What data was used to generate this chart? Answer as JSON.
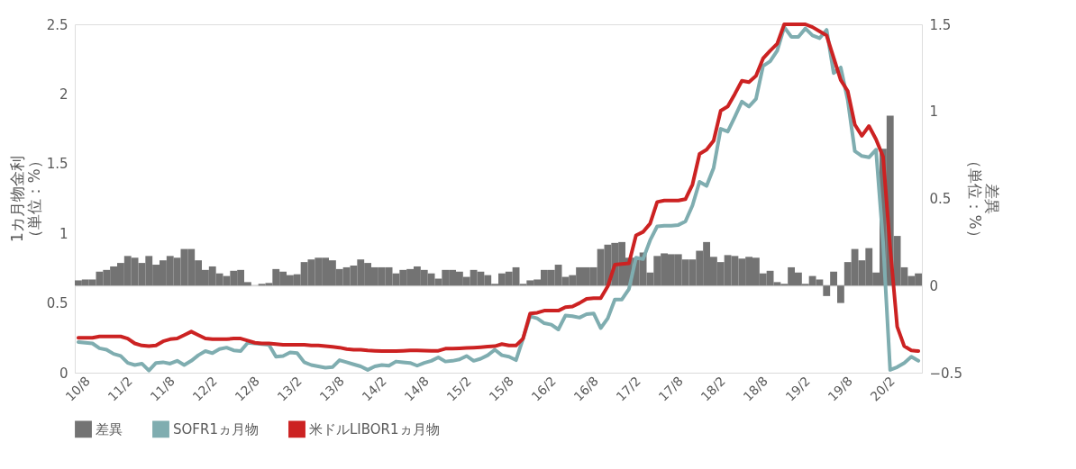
{
  "chart_data": {
    "type": "bar",
    "categories": [
      "10/8",
      null,
      null,
      null,
      null,
      null,
      "11/2",
      null,
      null,
      null,
      null,
      null,
      "11/8",
      null,
      null,
      null,
      null,
      null,
      "12/2",
      null,
      null,
      null,
      null,
      null,
      "12/8",
      null,
      null,
      null,
      null,
      null,
      "13/2",
      null,
      null,
      null,
      null,
      null,
      "13/8",
      null,
      null,
      null,
      null,
      null,
      "14/2",
      null,
      null,
      null,
      null,
      null,
      "14/8",
      null,
      null,
      null,
      null,
      null,
      "15/2",
      null,
      null,
      null,
      null,
      null,
      "15/8",
      null,
      null,
      null,
      null,
      null,
      "16/2",
      null,
      null,
      null,
      null,
      null,
      "16/8",
      null,
      null,
      null,
      null,
      null,
      "17/2",
      null,
      null,
      null,
      null,
      null,
      "17/8",
      null,
      null,
      null,
      null,
      null,
      "18/2",
      null,
      null,
      null,
      null,
      null,
      "18/8",
      null,
      null,
      null,
      null,
      null,
      "19/2",
      null,
      null,
      null,
      null,
      null,
      "19/8",
      null,
      null,
      null,
      null,
      null,
      "20/2",
      null,
      null,
      null,
      null,
      null
    ],
    "series": [
      {
        "name": "差異",
        "axis": "y2",
        "color": "#737373",
        "values": [
          0.03,
          0.035,
          0.035,
          0.08,
          0.09,
          0.11,
          0.13,
          0.17,
          0.16,
          0.13,
          0.17,
          0.12,
          0.145,
          0.17,
          0.16,
          0.21,
          0.21,
          0.145,
          0.09,
          0.11,
          0.07,
          0.055,
          0.085,
          0.09,
          0.02,
          0,
          0.01,
          0.015,
          0.095,
          0.08,
          0.06,
          0.065,
          0.135,
          0.15,
          0.16,
          0.16,
          0.145,
          0.095,
          0.105,
          0.115,
          0.15,
          0.13,
          0.105,
          0.105,
          0.105,
          0.07,
          0.09,
          0.095,
          0.11,
          0.09,
          0.07,
          0.04,
          0.09,
          0.09,
          0.08,
          0.05,
          0.09,
          0.08,
          0.06,
          0.01,
          0.07,
          0.08,
          0.105,
          0.01,
          0.03,
          0.035,
          0.09,
          0.09,
          0.12,
          0.05,
          0.06,
          0.105,
          0.105,
          0.105,
          0.21,
          0.235,
          0.245,
          0.25,
          0.16,
          0.16,
          0.19,
          0.075,
          0.17,
          0.185,
          0.18,
          0.18,
          0.15,
          0.15,
          0.2,
          0.25,
          0.165,
          0.135,
          0.175,
          0.17,
          0.155,
          0.165,
          0.16,
          0.07,
          0.085,
          0.02,
          0.01,
          0.105,
          0.075,
          0.01,
          0.055,
          0.035,
          -0.06,
          0.08,
          -0.1,
          0.135,
          0.21,
          0.145,
          0.215,
          0.075,
          0.785,
          0.975,
          0.285,
          0.105,
          0.055,
          0.07
        ]
      },
      {
        "name": "SOFR1ヵ月物",
        "type": "line",
        "axis": "y",
        "color": "#7fadb0",
        "values": [
          0.22,
          0.215,
          0.21,
          0.175,
          0.165,
          0.135,
          0.12,
          0.07,
          0.055,
          0.065,
          0.015,
          0.07,
          0.075,
          0.065,
          0.085,
          0.055,
          0.085,
          0.125,
          0.155,
          0.14,
          0.17,
          0.18,
          0.16,
          0.155,
          0.215,
          0.21,
          0.205,
          0.2,
          0.115,
          0.12,
          0.145,
          0.14,
          0.075,
          0.055,
          0.045,
          0.035,
          0.04,
          0.09,
          0.075,
          0.06,
          0.045,
          0.02,
          0.045,
          0.055,
          0.05,
          0.08,
          0.075,
          0.07,
          0.05,
          0.07,
          0.085,
          0.11,
          0.08,
          0.085,
          0.095,
          0.12,
          0.085,
          0.1,
          0.125,
          0.165,
          0.125,
          0.115,
          0.09,
          0.245,
          0.405,
          0.39,
          0.355,
          0.345,
          0.31,
          0.41,
          0.405,
          0.395,
          0.42,
          0.425,
          0.32,
          0.39,
          0.525,
          0.525,
          0.6,
          0.825,
          0.815,
          0.95,
          1.05,
          1.055,
          1.055,
          1.06,
          1.085,
          1.2,
          1.37,
          1.34,
          1.47,
          1.75,
          1.73,
          1.835,
          1.945,
          1.91,
          1.965,
          2.2,
          2.235,
          2.31,
          2.48,
          2.41,
          2.41,
          2.47,
          2.42,
          2.4,
          2.46,
          2.15,
          2.19,
          1.955,
          1.59,
          1.555,
          1.545,
          1.6,
          0.94,
          0.02,
          0.04,
          0.07,
          0.115,
          0.085
        ]
      },
      {
        "name": "米ドルLIBOR1ヵ月物",
        "type": "line",
        "axis": "y",
        "color": "#cc2222",
        "values": [
          0.25,
          0.25,
          0.25,
          0.26,
          0.26,
          0.26,
          0.26,
          0.245,
          0.21,
          0.195,
          0.19,
          0.195,
          0.225,
          0.24,
          0.245,
          0.27,
          0.295,
          0.27,
          0.245,
          0.24,
          0.24,
          0.24,
          0.245,
          0.245,
          0.23,
          0.215,
          0.21,
          0.21,
          0.205,
          0.2,
          0.2,
          0.2,
          0.2,
          0.195,
          0.195,
          0.19,
          0.185,
          0.18,
          0.17,
          0.165,
          0.165,
          0.16,
          0.157,
          0.155,
          0.155,
          0.155,
          0.157,
          0.16,
          0.16,
          0.158,
          0.157,
          0.157,
          0.172,
          0.173,
          0.175,
          0.178,
          0.18,
          0.183,
          0.187,
          0.19,
          0.205,
          0.195,
          0.195,
          0.245,
          0.425,
          0.43,
          0.445,
          0.445,
          0.445,
          0.47,
          0.475,
          0.5,
          0.53,
          0.535,
          0.535,
          0.62,
          0.775,
          0.78,
          0.785,
          0.985,
          1.01,
          1.07,
          1.225,
          1.235,
          1.235,
          1.235,
          1.245,
          1.35,
          1.57,
          1.6,
          1.665,
          1.88,
          1.91,
          2.0,
          2.095,
          2.085,
          2.13,
          2.255,
          2.31,
          2.36,
          2.5,
          2.5,
          2.5,
          2.5,
          2.48,
          2.45,
          2.42,
          2.26,
          2.1,
          2.02,
          1.78,
          1.7,
          1.77,
          1.675,
          1.55,
          0.9,
          0.33,
          0.19,
          0.16,
          0.155
        ]
      }
    ],
    "ylabel": "1カ月物金利（単位：%）",
    "y2label": "差異（単位：%）",
    "ylim": [
      0,
      2.5
    ],
    "yticks": [
      0,
      0.5,
      1,
      1.5,
      2,
      2.5
    ],
    "y2lim": [
      -0.5,
      1.5
    ],
    "y2ticks": [
      -0.5,
      0,
      0.5,
      1,
      1.5
    ],
    "ref_lines": [
      {
        "axis": "y2",
        "value": 0,
        "color": "#d9d9d9"
      }
    ],
    "grid": false,
    "legend": "bottom",
    "line_style": "solid",
    "marker": "none"
  }
}
